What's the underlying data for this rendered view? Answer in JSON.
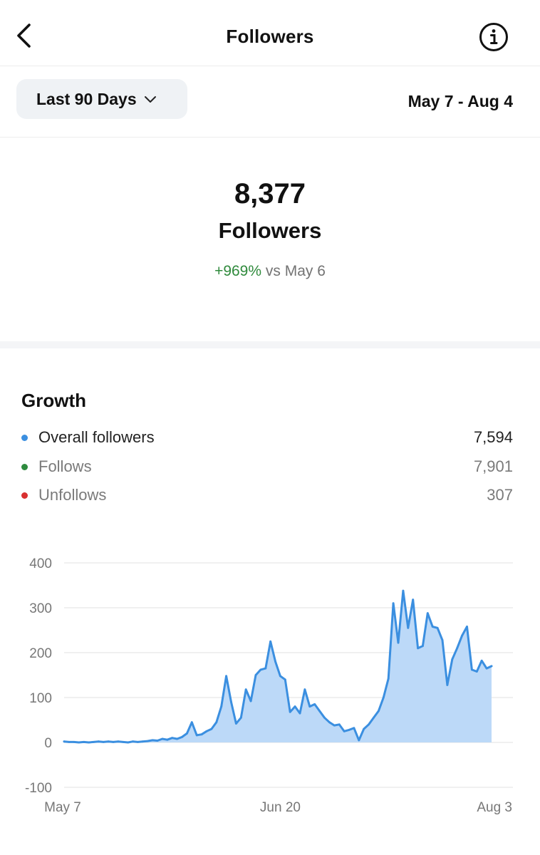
{
  "header": {
    "title": "Followers"
  },
  "filter": {
    "range_label": "Last 90 Days",
    "date_range": "May 7 - Aug 4"
  },
  "summary": {
    "count": "8,377",
    "label": "Followers",
    "change": "+969%",
    "compare": "vs May 6"
  },
  "growth": {
    "title": "Growth",
    "legend": [
      {
        "name": "Overall followers",
        "value": "7,594",
        "color": "#3b8fe0"
      },
      {
        "name": "Follows",
        "value": "7,901",
        "color": "#2e8b3e"
      },
      {
        "name": "Unfollows",
        "value": "307",
        "color": "#d93030"
      }
    ]
  },
  "colors": {
    "line": "#3b8fe0",
    "area": "#bcd9f8",
    "grid": "#e8e8e8",
    "tick": "#777777",
    "positive": "#2f8a3c"
  },
  "chart_data": {
    "type": "area",
    "ylim": [
      -100,
      400
    ],
    "y_ticks": [
      400,
      300,
      200,
      100,
      0,
      -100
    ],
    "x_tick_labels": [
      "May 7",
      "Jun 20",
      "Aug 3"
    ],
    "x_tick_days": [
      0,
      44,
      88
    ],
    "grid": true,
    "series": [
      {
        "values": [
          2,
          1,
          1,
          0,
          1,
          0,
          1,
          2,
          1,
          2,
          1,
          2,
          1,
          0,
          2,
          1,
          2,
          3,
          5,
          4,
          8,
          6,
          10,
          8,
          12,
          20,
          45,
          16,
          18,
          25,
          30,
          45,
          80,
          148,
          90,
          42,
          55,
          118,
          92,
          150,
          162,
          165,
          225,
          180,
          148,
          140,
          68,
          80,
          65,
          118,
          80,
          85,
          70,
          55,
          45,
          38,
          40,
          25,
          28,
          32,
          5,
          30,
          40,
          55,
          70,
          100,
          142,
          310,
          222,
          338,
          255,
          318,
          210,
          215,
          288,
          258,
          255,
          228,
          128,
          185,
          210,
          238,
          258,
          162,
          158,
          182,
          165,
          170
        ]
      }
    ]
  }
}
